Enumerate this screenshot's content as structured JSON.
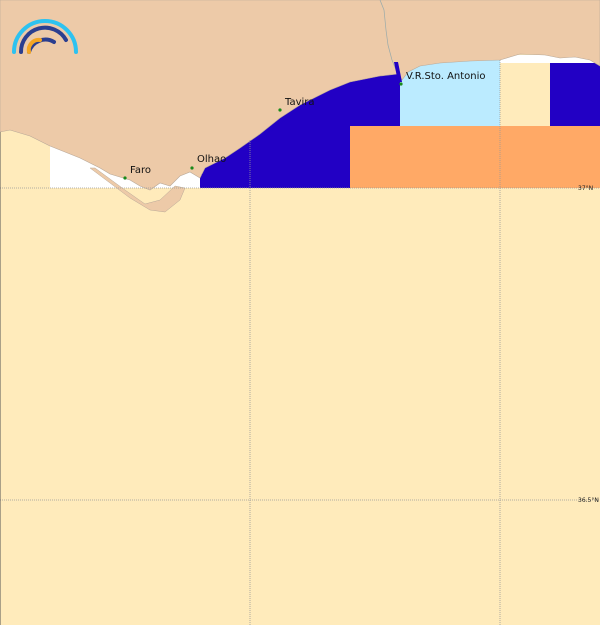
{
  "map": {
    "places": [
      {
        "name": "Faro"
      },
      {
        "name": "Olhao"
      },
      {
        "name": "Tavira"
      },
      {
        "name": "V.R.Sto. Antonio"
      }
    ],
    "latitude_labels": [
      "37°N",
      "36.5°N"
    ],
    "colors": {
      "land": "#EDCAA8",
      "open_sea": "#FFEBBB",
      "zone_dark_blue": "#2200C4",
      "zone_light_blue": "#BBEBFF",
      "zone_orange": "#FFA966",
      "zone_white": "#FFFFFF",
      "town_marker": "#1a8a1a"
    },
    "logo": "rainbow-arc-logo"
  }
}
